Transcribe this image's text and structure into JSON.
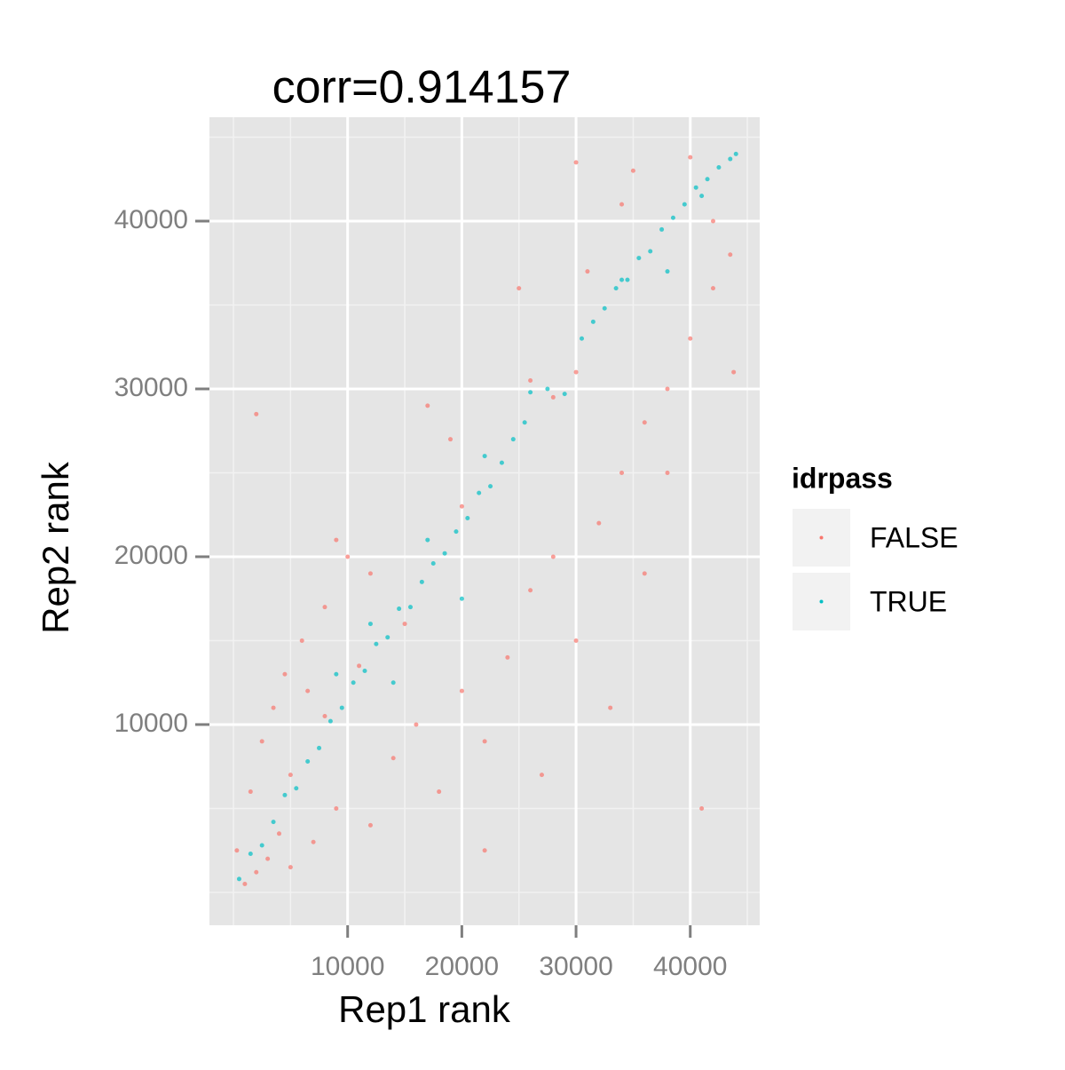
{
  "chart_data": {
    "type": "scatter",
    "title": "corr=0.914157",
    "x_label": "Rep1 rank",
    "y_label": "Rep2 rank",
    "legend_title": "idrpass",
    "legend_position": "right",
    "xlim": [
      -2100,
      46080
    ],
    "ylim": [
      -1960,
      46190
    ],
    "xticks": [
      10000,
      20000,
      30000,
      40000
    ],
    "yticks": [
      10000,
      20000,
      30000,
      40000
    ],
    "x_minor": [
      0,
      5000,
      15000,
      25000,
      35000,
      45000
    ],
    "y_minor": [
      0,
      5000,
      15000,
      25000,
      35000,
      45000
    ],
    "grid": true,
    "series": [
      {
        "name": "FALSE",
        "color": "#F8766D",
        "x": [
          300,
          1000,
          1500,
          2000,
          2500,
          3000,
          3500,
          4000,
          4500,
          5000,
          6000,
          7000,
          8000,
          9000,
          10000,
          12000,
          14000,
          16000,
          18000,
          20000,
          22000,
          24000,
          26000,
          28000,
          30000,
          32000,
          34000,
          36000,
          38000,
          40000,
          42000,
          43500,
          43800,
          2000,
          5000,
          8000,
          9000,
          11000,
          15000,
          20000,
          25000,
          30000,
          35000,
          40000,
          42000,
          30000,
          34000,
          38000,
          26000,
          28000,
          33000,
          36000,
          41000,
          17000,
          22000,
          27000,
          12000,
          6500,
          19000,
          31000
        ],
        "y": [
          2500,
          500,
          6000,
          1200,
          9000,
          2000,
          11000,
          3500,
          13000,
          1500,
          15000,
          3000,
          17000,
          5000,
          20000,
          4000,
          8000,
          10000,
          6000,
          12000,
          9000,
          14000,
          18000,
          20000,
          15000,
          22000,
          25000,
          28000,
          30000,
          33000,
          36000,
          38000,
          31000,
          28500,
          7000,
          10500,
          21000,
          13500,
          16000,
          23000,
          36000,
          43500,
          43000,
          43800,
          40000,
          31000,
          41000,
          25000,
          30500,
          29500,
          11000,
          19000,
          5000,
          29000,
          2500,
          7000,
          19000,
          12000,
          27000,
          37000
        ]
      },
      {
        "name": "TRUE",
        "color": "#00BFC4",
        "x": [
          500,
          1500,
          2500,
          3500,
          4500,
          5500,
          6500,
          7500,
          8500,
          9500,
          10500,
          11500,
          12500,
          13500,
          14500,
          15500,
          16500,
          17500,
          18500,
          19500,
          20500,
          21500,
          22500,
          23500,
          24500,
          26000,
          27500,
          29000,
          30500,
          31500,
          32500,
          33500,
          34500,
          35500,
          36500,
          37500,
          38500,
          39500,
          40500,
          41500,
          42500,
          43500,
          44000,
          9000,
          12000,
          14000,
          17000,
          20000,
          22000,
          25500,
          34000,
          38000,
          41000
        ],
        "y": [
          800,
          2300,
          2800,
          4200,
          5800,
          6200,
          7800,
          8600,
          10200,
          11000,
          12500,
          13200,
          14800,
          15200,
          16900,
          17000,
          18500,
          19600,
          20200,
          21500,
          22300,
          23800,
          24200,
          25600,
          27000,
          29800,
          30000,
          29700,
          33000,
          34000,
          34800,
          36000,
          36500,
          37800,
          38200,
          39500,
          40200,
          41000,
          42000,
          42500,
          43200,
          43700,
          44000,
          13000,
          16000,
          12500,
          21000,
          17500,
          26000,
          28000,
          36500,
          37000,
          41500
        ]
      }
    ]
  }
}
